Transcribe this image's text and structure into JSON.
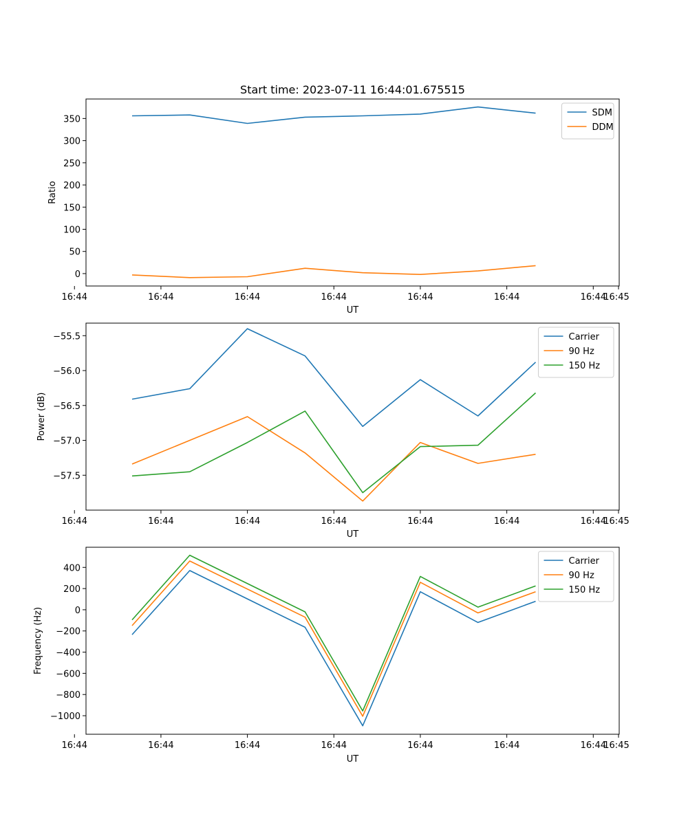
{
  "figure": {
    "title": "Start time: 2023-07-11 16:44:01.675515"
  },
  "chart_data": [
    {
      "type": "line",
      "title": "Start time: 2023-07-11 16:44:01.675515",
      "xlabel": "UT",
      "ylabel": "Ratio",
      "x": [
        1,
        2,
        3,
        4,
        5,
        6,
        7,
        8
      ],
      "xlim": [
        0.2,
        9.45
      ],
      "x_ticks": [
        0,
        1.5,
        3,
        4.5,
        6,
        7.5,
        9
      ],
      "x_tick_labels": [
        "16:44",
        "16:44",
        "16:44",
        "16:44",
        "16:44",
        "16:44",
        "16:44",
        "16:45"
      ],
      "ylim": [
        -28,
        394
      ],
      "y_ticks": [
        0,
        50,
        100,
        150,
        200,
        250,
        300,
        350
      ],
      "y_tick_labels": [
        "0",
        "50",
        "100",
        "150",
        "200",
        "250",
        "300",
        "350"
      ],
      "legend_position": "top-right",
      "series": [
        {
          "name": "SDM",
          "color": "#1f77b4",
          "values": [
            356,
            358,
            339,
            353,
            356,
            360,
            376,
            362
          ]
        },
        {
          "name": "DDM",
          "color": "#ff7f0e",
          "values": [
            -3,
            -9,
            -7,
            12,
            2,
            -2,
            6,
            18
          ]
        }
      ]
    },
    {
      "type": "line",
      "title": "",
      "xlabel": "UT",
      "ylabel": "Power (dB)",
      "x": [
        1,
        2,
        3,
        4,
        5,
        6,
        7,
        8
      ],
      "xlim": [
        0.2,
        9.45
      ],
      "x_ticks": [
        0,
        1.5,
        3,
        4.5,
        6,
        7.5,
        9
      ],
      "x_tick_labels": [
        "16:44",
        "16:44",
        "16:44",
        "16:44",
        "16:44",
        "16:44",
        "16:44",
        "16:45"
      ],
      "ylim": [
        -58.0,
        -55.32
      ],
      "y_ticks": [
        -57.5,
        -57.0,
        -56.5,
        -56.0,
        -55.5
      ],
      "y_tick_labels": [
        "−57.5",
        "−57.0",
        "−56.5",
        "−56.0",
        "−55.5"
      ],
      "legend_position": "top-right",
      "series": [
        {
          "name": "Carrier",
          "color": "#1f77b4",
          "values": [
            -56.41,
            -56.26,
            -55.4,
            -55.79,
            -56.8,
            -56.13,
            -56.65,
            -55.88
          ]
        },
        {
          "name": "90 Hz",
          "color": "#ff7f0e",
          "values": [
            -57.34,
            -57.0,
            -56.66,
            -57.18,
            -57.87,
            -57.03,
            -57.33,
            -57.2
          ]
        },
        {
          "name": "150 Hz",
          "color": "#2ca02c",
          "values": [
            -57.51,
            -57.45,
            -57.03,
            -56.58,
            -57.75,
            -57.09,
            -57.07,
            -56.32
          ]
        }
      ]
    },
    {
      "type": "line",
      "title": "",
      "xlabel": "UT",
      "ylabel": "Frequency (Hz)",
      "x": [
        1,
        2,
        3,
        4,
        5,
        6,
        7,
        8
      ],
      "xlim": [
        0.2,
        9.45
      ],
      "x_ticks": [
        0,
        1.5,
        3,
        4.5,
        6,
        7.5,
        9
      ],
      "x_tick_labels": [
        "16:44",
        "16:44",
        "16:44",
        "16:44",
        "16:44",
        "16:44",
        "16:44",
        "16:45"
      ],
      "ylim": [
        -1175,
        590
      ],
      "y_ticks": [
        -1000,
        -800,
        -600,
        -400,
        -200,
        0,
        200,
        400
      ],
      "y_tick_labels": [
        "−1000",
        "−800",
        "−600",
        "−400",
        "−200",
        "0",
        "200",
        "400"
      ],
      "legend_position": "top-right",
      "series": [
        {
          "name": "Carrier",
          "color": "#1f77b4",
          "values": [
            -235,
            370,
            null,
            -165,
            -1095,
            170,
            -120,
            80
          ]
        },
        {
          "name": "90 Hz",
          "color": "#ff7f0e",
          "values": [
            -150,
            460,
            null,
            -70,
            -1005,
            260,
            -30,
            170
          ]
        },
        {
          "name": "150 Hz",
          "color": "#2ca02c",
          "values": [
            -95,
            515,
            null,
            -20,
            -955,
            315,
            25,
            225
          ]
        }
      ]
    }
  ]
}
